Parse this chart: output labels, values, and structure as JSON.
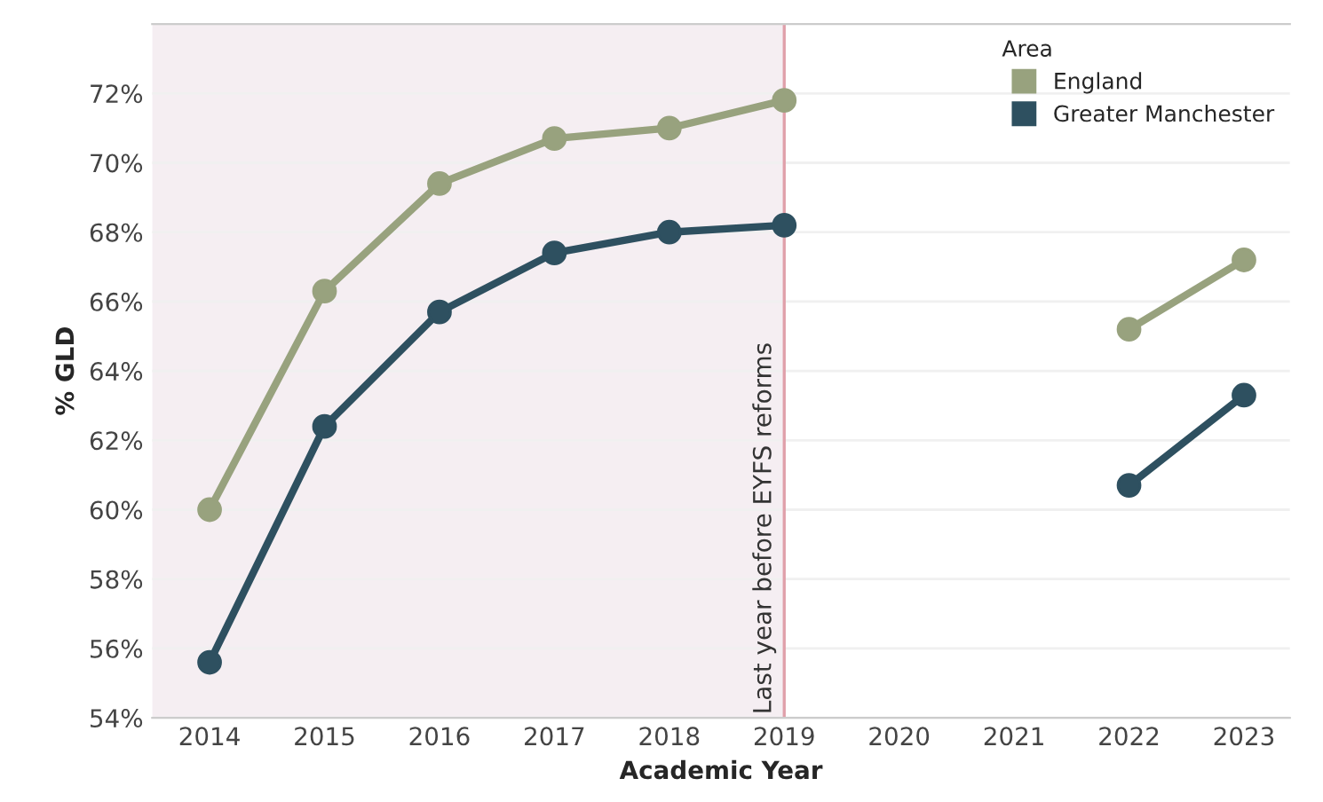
{
  "chart_data": {
    "type": "line",
    "xlabel": "Academic Year",
    "ylabel": "% GLD",
    "legend_title": "Area",
    "categories": [
      "2014",
      "2015",
      "2016",
      "2017",
      "2018",
      "2019",
      "2020",
      "2021",
      "2022",
      "2023"
    ],
    "series": [
      {
        "name": "England",
        "color": "#98a27e",
        "values": [
          60.0,
          66.3,
          69.4,
          70.7,
          71.0,
          71.8,
          null,
          null,
          65.2,
          67.2
        ]
      },
      {
        "name": "Greater Manchester",
        "color": "#2e5060",
        "values": [
          55.6,
          62.4,
          65.7,
          67.4,
          68.0,
          68.2,
          null,
          null,
          60.7,
          63.3
        ]
      }
    ],
    "ylim": [
      54,
      74
    ],
    "yticks": [
      {
        "value": 54,
        "label": "54%"
      },
      {
        "value": 56,
        "label": "56%"
      },
      {
        "value": 58,
        "label": "58%"
      },
      {
        "value": 60,
        "label": "60%"
      },
      {
        "value": 62,
        "label": "62%"
      },
      {
        "value": 64,
        "label": "64%"
      },
      {
        "value": 66,
        "label": "66%"
      },
      {
        "value": 68,
        "label": "68%"
      },
      {
        "value": 70,
        "label": "70%"
      },
      {
        "value": 72,
        "label": "72%"
      }
    ],
    "ref_lines": [
      {
        "axis": "x",
        "value": "2019",
        "label": "Last year before EYFS reforms",
        "color": "#e0a0aa"
      }
    ],
    "bands": [
      {
        "axis": "x",
        "from": "2014",
        "to": "2019",
        "color": "#f5eef2"
      }
    ],
    "grid": "y",
    "legend": "top right",
    "marker": "circle",
    "line_style": "solid"
  }
}
